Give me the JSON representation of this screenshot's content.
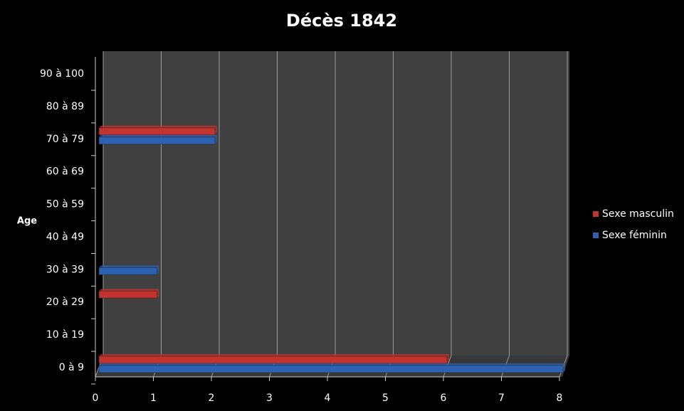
{
  "chart_data": {
    "type": "bar",
    "orientation": "horizontal",
    "title": "Décès 1842",
    "y_label": "Age",
    "categories": [
      "0 à 9",
      "10 à 19",
      "20 à 29",
      "30 à 39",
      "40 à 49",
      "50 à 59",
      "60 à 69",
      "70 à 79",
      "80 à 89",
      "90 à 100"
    ],
    "series": [
      {
        "name": "Sexe masculin",
        "color": "#c0332f",
        "values": [
          6,
          0,
          1,
          0,
          0,
          0,
          0,
          2,
          0,
          0
        ]
      },
      {
        "name": "Sexe féminin",
        "color": "#2e62b0",
        "values": [
          8,
          0,
          0,
          1,
          0,
          0,
          0,
          2,
          0,
          0
        ]
      }
    ],
    "xlim": [
      0,
      8
    ],
    "xticks": [
      0,
      1,
      2,
      3,
      4,
      5,
      6,
      7,
      8
    ],
    "grid": true,
    "legend": "right"
  }
}
